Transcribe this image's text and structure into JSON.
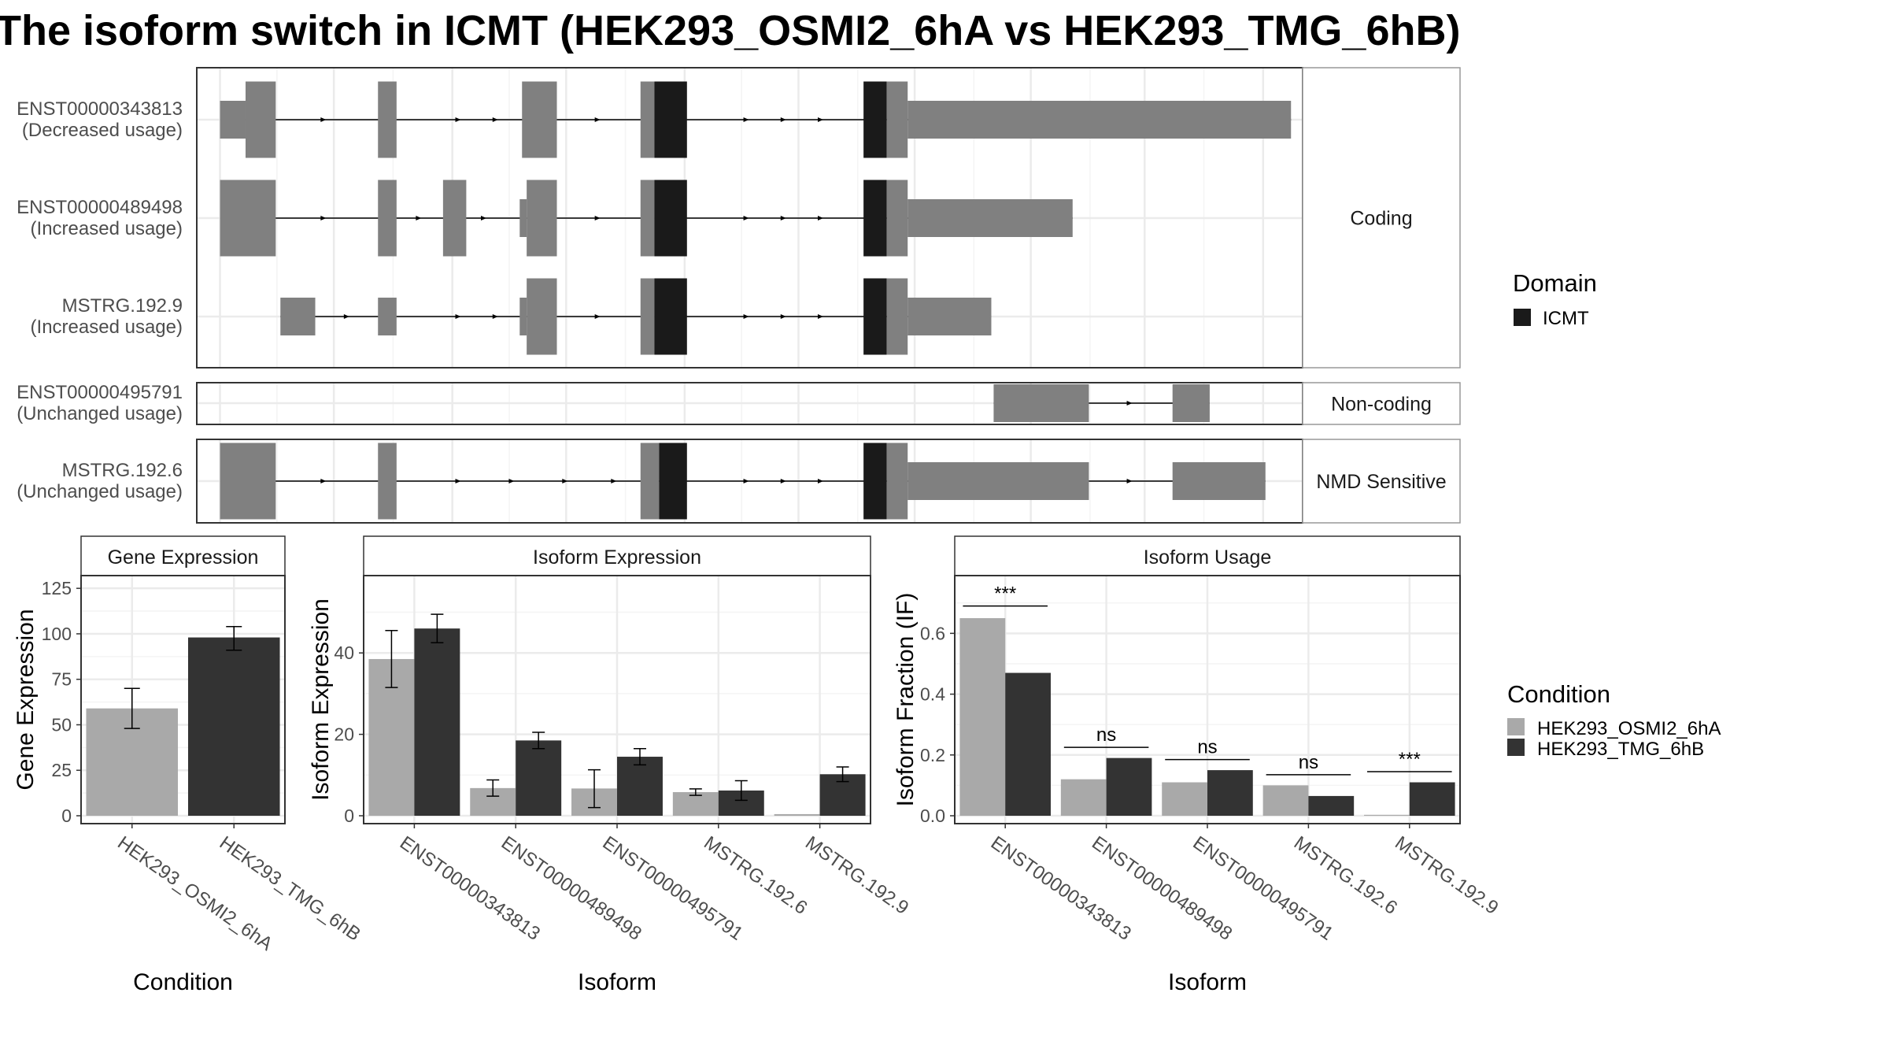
{
  "title": "The isoform switch in ICMT (HEK293_OSMI2_6hA vs HEK293_TMG_6hB)",
  "colors": {
    "exon": "#808080",
    "domain": "#1a1a1a",
    "cond_a": "#a9a9a9",
    "cond_b": "#333333",
    "panel_border": "#333333",
    "grid": "#ebebeb",
    "strip_border": "#999999"
  },
  "structure": {
    "groups": [
      {
        "label": "Coding",
        "transcripts": [
          {
            "id": "ENST00000343813",
            "usage": "(Decreased usage)",
            "exons": [
              {
                "s": 1.0,
                "e": 2.1,
                "type": "utr"
              },
              {
                "s": 2.1,
                "e": 3.4,
                "type": "cds"
              },
              {
                "s": 7.8,
                "e": 8.6,
                "type": "cds"
              },
              {
                "s": 14.0,
                "e": 15.5,
                "type": "cds"
              },
              {
                "s": 19.1,
                "e": 19.7,
                "type": "cds"
              },
              {
                "s": 19.7,
                "e": 21.1,
                "type": "domain"
              },
              {
                "s": 28.7,
                "e": 29.7,
                "type": "domain"
              },
              {
                "s": 29.7,
                "e": 30.6,
                "type": "cds"
              },
              {
                "s": 30.6,
                "e": 47.1,
                "type": "utr"
              }
            ],
            "arrows": [
              5.5,
              11.3,
              12.9,
              17.3,
              23.7,
              25.3,
              26.9
            ]
          },
          {
            "id": "ENST00000489498",
            "usage": "(Increased usage)",
            "exons": [
              {
                "s": 1.0,
                "e": 3.4,
                "type": "cds"
              },
              {
                "s": 7.8,
                "e": 8.6,
                "type": "cds"
              },
              {
                "s": 10.6,
                "e": 11.6,
                "type": "cds"
              },
              {
                "s": 13.9,
                "e": 14.2,
                "type": "utr"
              },
              {
                "s": 14.2,
                "e": 15.5,
                "type": "cds"
              },
              {
                "s": 19.1,
                "e": 19.7,
                "type": "cds"
              },
              {
                "s": 19.7,
                "e": 21.1,
                "type": "domain"
              },
              {
                "s": 28.7,
                "e": 29.7,
                "type": "domain"
              },
              {
                "s": 29.7,
                "e": 30.6,
                "type": "cds"
              },
              {
                "s": 30.6,
                "e": 37.7,
                "type": "utr"
              }
            ],
            "arrows": [
              5.5,
              9.6,
              12.4,
              17.3,
              23.7,
              25.3,
              26.9
            ]
          },
          {
            "id": "MSTRG.192.9",
            "usage": "(Increased usage)",
            "exons": [
              {
                "s": 3.6,
                "e": 5.1,
                "type": "utr"
              },
              {
                "s": 7.8,
                "e": 8.6,
                "type": "utr"
              },
              {
                "s": 13.9,
                "e": 14.2,
                "type": "utr"
              },
              {
                "s": 14.2,
                "e": 15.5,
                "type": "cds"
              },
              {
                "s": 19.1,
                "e": 19.7,
                "type": "cds"
              },
              {
                "s": 19.7,
                "e": 21.1,
                "type": "domain"
              },
              {
                "s": 28.7,
                "e": 29.7,
                "type": "domain"
              },
              {
                "s": 29.7,
                "e": 30.6,
                "type": "cds"
              },
              {
                "s": 30.6,
                "e": 34.2,
                "type": "utr"
              }
            ],
            "arrows": [
              6.5,
              11.3,
              12.9,
              17.3,
              23.7,
              25.3,
              26.9
            ]
          }
        ]
      },
      {
        "label": "Non-coding",
        "transcripts": [
          {
            "id": "ENST00000495791",
            "usage": "(Unchanged usage)",
            "exons": [
              {
                "s": 34.3,
                "e": 38.4,
                "type": "utr"
              },
              {
                "s": 42.0,
                "e": 43.6,
                "type": "utr"
              }
            ],
            "arrows": [
              40.2
            ]
          }
        ]
      },
      {
        "label": "NMD Sensitive",
        "transcripts": [
          {
            "id": "MSTRG.192.6",
            "usage": "(Unchanged usage)",
            "exons": [
              {
                "s": 1.0,
                "e": 3.4,
                "type": "cds"
              },
              {
                "s": 7.8,
                "e": 8.6,
                "type": "cds"
              },
              {
                "s": 19.1,
                "e": 19.9,
                "type": "cds"
              },
              {
                "s": 19.9,
                "e": 21.1,
                "type": "domain"
              },
              {
                "s": 28.7,
                "e": 29.7,
                "type": "domain"
              },
              {
                "s": 29.7,
                "e": 30.6,
                "type": "cds"
              },
              {
                "s": 30.6,
                "e": 38.4,
                "type": "utr"
              },
              {
                "s": 42.0,
                "e": 46.0,
                "type": "utr"
              }
            ],
            "arrows": [
              5.5,
              11.3,
              13.6,
              15.9,
              18.0,
              23.7,
              25.3,
              26.9,
              40.2
            ]
          }
        ]
      }
    ]
  },
  "legend_domain": {
    "title": "Domain",
    "items": [
      {
        "label": "ICMT",
        "color_key": "domain"
      }
    ]
  },
  "legend_condition": {
    "title": "Condition",
    "items": [
      {
        "label": "HEK293_OSMI2_6hA",
        "color_key": "cond_a"
      },
      {
        "label": "HEK293_TMG_6hB",
        "color_key": "cond_b"
      }
    ]
  },
  "chart_data": [
    {
      "type": "bar",
      "title": "Gene Expression",
      "xlabel": "Condition",
      "ylabel": "Gene Expression",
      "ylim": [
        0,
        132
      ],
      "yticks": [
        0,
        25,
        50,
        75,
        100,
        125
      ],
      "categories": [
        "HEK293_OSMI2_6hA",
        "HEK293_TMG_6hB"
      ],
      "bars": [
        {
          "cat": 0,
          "cond": 0,
          "value": 59,
          "err": [
            48,
            70
          ]
        },
        {
          "cat": 1,
          "cond": 1,
          "value": 98,
          "err": [
            91,
            104
          ]
        }
      ],
      "significance": []
    },
    {
      "type": "bar",
      "title": "Isoform Expression",
      "xlabel": "Isoform",
      "ylabel": "Isoform Expression",
      "ylim": [
        0,
        59
      ],
      "yticks": [
        0,
        20,
        40
      ],
      "categories": [
        "ENST00000343813",
        "ENST00000489498",
        "ENST00000495791",
        "MSTRG.192.6",
        "MSTRG.192.9"
      ],
      "series": [
        {
          "name": "HEK293_OSMI2_6hA",
          "values": [
            38.5,
            6.8,
            6.7,
            5.8,
            0.4
          ],
          "err": [
            [
              31.5,
              45.5
            ],
            [
              4.8,
              8.8
            ],
            [
              2.0,
              11.3
            ],
            [
              5.0,
              6.6
            ],
            [
              null,
              null
            ]
          ]
        },
        {
          "name": "HEK293_TMG_6hB",
          "values": [
            46.0,
            18.5,
            14.5,
            6.2,
            10.2
          ],
          "err": [
            [
              42.5,
              49.5
            ],
            [
              16.5,
              20.5
            ],
            [
              12.5,
              16.5
            ],
            [
              3.8,
              8.6
            ],
            [
              8.4,
              12.0
            ]
          ]
        }
      ],
      "significance": []
    },
    {
      "type": "bar",
      "title": "Isoform Usage",
      "xlabel": "Isoform",
      "ylabel": "Isoform Fraction (IF)",
      "ylim": [
        0,
        0.79
      ],
      "yticks": [
        0.0,
        0.2,
        0.4,
        0.6
      ],
      "ytick_labels": [
        "0.0",
        "0.2",
        "0.4",
        "0.6"
      ],
      "categories": [
        "ENST00000343813",
        "ENST00000489498",
        "ENST00000495791",
        "MSTRG.192.6",
        "MSTRG.192.9"
      ],
      "series": [
        {
          "name": "HEK293_OSMI2_6hA",
          "values": [
            0.65,
            0.12,
            0.11,
            0.1,
            0.003
          ]
        },
        {
          "name": "HEK293_TMG_6hB",
          "values": [
            0.47,
            0.19,
            0.15,
            0.065,
            0.11
          ]
        }
      ],
      "significance": [
        {
          "label": "***",
          "y": 0.69
        },
        {
          "label": "ns",
          "y": 0.225
        },
        {
          "label": "ns",
          "y": 0.185
        },
        {
          "label": "ns",
          "y": 0.135
        },
        {
          "label": "***",
          "y": 0.145
        }
      ]
    }
  ]
}
